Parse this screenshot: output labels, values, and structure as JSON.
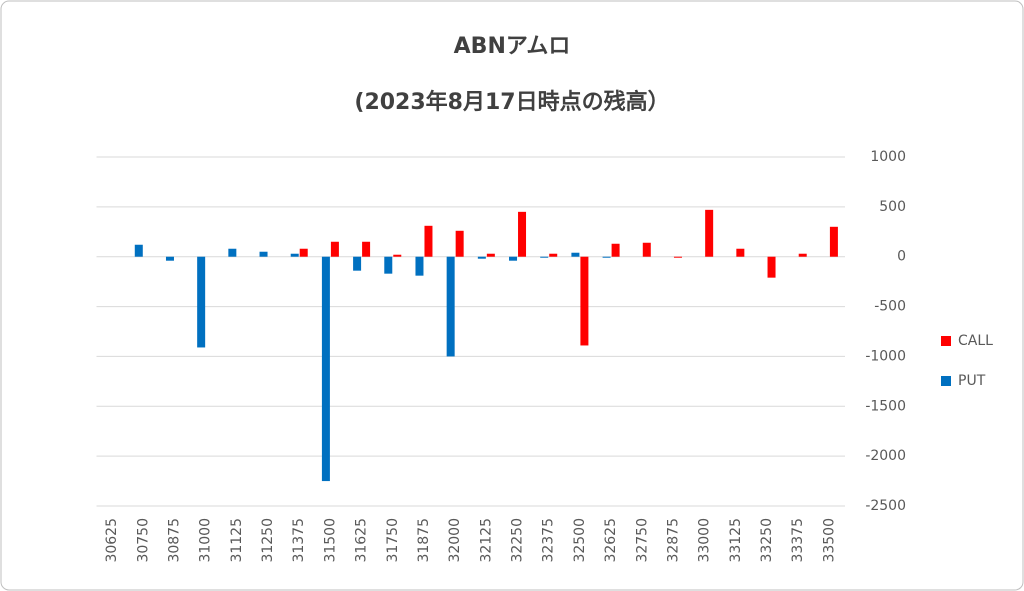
{
  "chart_data": {
    "type": "bar",
    "title": "ABNアムロ",
    "subtitle": "(2023年8月17日時点の残高）",
    "categories": [
      "30625",
      "30750",
      "30875",
      "31000",
      "31125",
      "31250",
      "31375",
      "31500",
      "31625",
      "31750",
      "31875",
      "32000",
      "32125",
      "32250",
      "32375",
      "32500",
      "32625",
      "32750",
      "32875",
      "33000",
      "33125",
      "33250",
      "33375",
      "33500"
    ],
    "series": [
      {
        "name": "CALL",
        "color": "#ff0000",
        "values": [
          0,
          0,
          0,
          0,
          0,
          0,
          80,
          150,
          150,
          20,
          310,
          260,
          30,
          450,
          30,
          -890,
          130,
          140,
          -10,
          470,
          80,
          -210,
          30,
          300
        ]
      },
      {
        "name": "PUT",
        "color": "#0070c0",
        "values": [
          0,
          120,
          -40,
          -910,
          80,
          50,
          30,
          -2250,
          -140,
          -170,
          -190,
          -1000,
          -20,
          -40,
          -10,
          40,
          -10,
          0,
          0,
          0,
          0,
          0,
          0,
          0
        ]
      }
    ],
    "ylim": [
      -2500,
      1000
    ],
    "yticks": [
      1000,
      500,
      0,
      -500,
      -1000,
      -1500,
      -2000,
      -2500
    ],
    "grid": true,
    "legend": "right"
  }
}
